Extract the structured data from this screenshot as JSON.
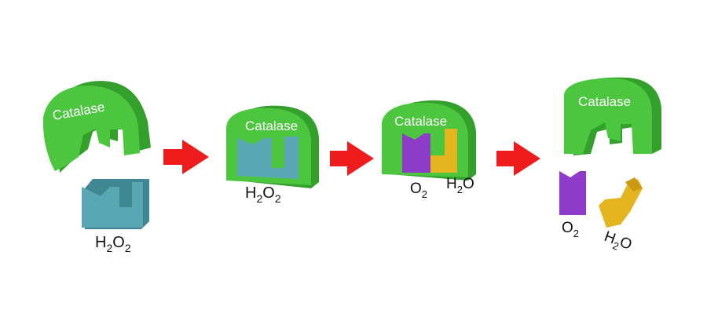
{
  "enzyme_label": "Catalase",
  "labels": {
    "h2o2": {
      "main": "H",
      "sub1": "2",
      "mid": "O",
      "sub2": "2"
    },
    "o2": {
      "main": "O",
      "sub": "2"
    },
    "h2o": {
      "main": "H",
      "sub": "2",
      "tail": "O"
    }
  },
  "colors": {
    "enzyme": "#4cc63f",
    "enzyme_side": "#33a02c",
    "substrate": "#5aa7b4",
    "substrate_side": "#3f8793",
    "oxygen": "#8d3bc8",
    "water": "#e5b520",
    "arrow": "#ee1c1c"
  }
}
